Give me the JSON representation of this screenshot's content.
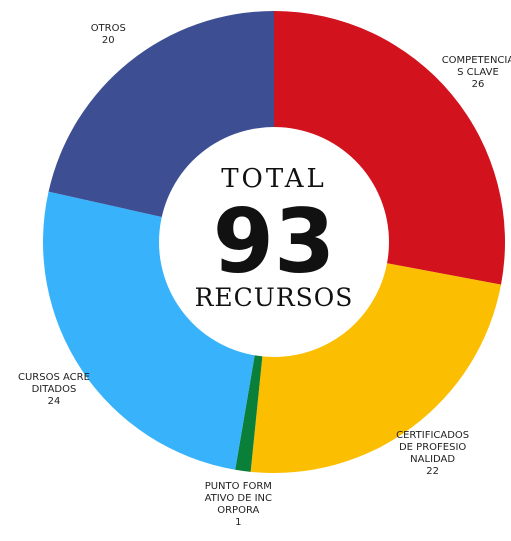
{
  "chart_data": {
    "type": "donut",
    "categories": [
      "COMPETENCIAS CLAVE",
      "CERTIFICADOS DE PROFESIONALIDAD",
      "PUNTO FORMATIVO DE INCORPORA",
      "CURSOS ACREDITADOS",
      "OTROS"
    ],
    "values": [
      26,
      22,
      1,
      24,
      20
    ],
    "colors": [
      "#d2121d",
      "#fbbe00",
      "#0a7f3a",
      "#38b3fb",
      "#3d4f92"
    ],
    "center_title": "TOTAL",
    "total": 93,
    "center_subtitle": "RECURSOS"
  }
}
